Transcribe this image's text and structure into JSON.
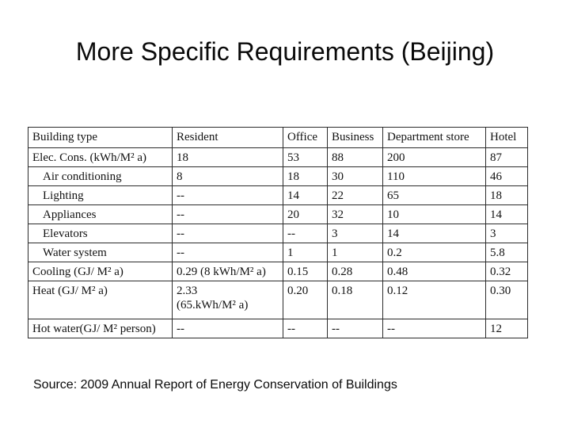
{
  "slide": {
    "title": "More Specific Requirements (Beijing)",
    "source": "Source: 2009 Annual Report of Energy Conservation of Buildings"
  },
  "table": {
    "header": [
      "Building type",
      "Resident",
      "Office",
      "Business",
      "Department store",
      "Hotel"
    ],
    "rows": [
      {
        "label": "Elec. Cons. (kWh/M² a)",
        "indent": false,
        "tall": false,
        "values": [
          "18",
          "53",
          "88",
          "200",
          "87"
        ]
      },
      {
        "label": "Air conditioning",
        "indent": true,
        "tall": false,
        "values": [
          "8",
          "18",
          "30",
          "110",
          "46"
        ]
      },
      {
        "label": "Lighting",
        "indent": true,
        "tall": false,
        "values": [
          "--",
          "14",
          "22",
          "65",
          "18"
        ]
      },
      {
        "label": "Appliances",
        "indent": true,
        "tall": false,
        "values": [
          "--",
          "20",
          "32",
          "10",
          "14"
        ]
      },
      {
        "label": "Elevators",
        "indent": true,
        "tall": false,
        "values": [
          "--",
          "--",
          "3",
          "14",
          "3"
        ]
      },
      {
        "label": "Water system",
        "indent": true,
        "tall": false,
        "values": [
          "--",
          "1",
          "1",
          "0.2",
          "5.8"
        ]
      },
      {
        "label": "Cooling (GJ/ M² a)",
        "indent": false,
        "tall": false,
        "values": [
          "0.29 (8 kWh/M² a)",
          "0.15",
          "0.28",
          "0.48",
          "0.32"
        ]
      },
      {
        "label": "Heat (GJ/ M² a)",
        "indent": false,
        "tall": true,
        "values": [
          "2.33\n(65.kWh/M² a)",
          "0.20",
          "0.18",
          "0.12",
          "0.30"
        ]
      },
      {
        "label": "Hot water(GJ/ M² person)",
        "indent": false,
        "tall": false,
        "values": [
          "--",
          "--",
          "--",
          "--",
          "12"
        ]
      }
    ]
  }
}
